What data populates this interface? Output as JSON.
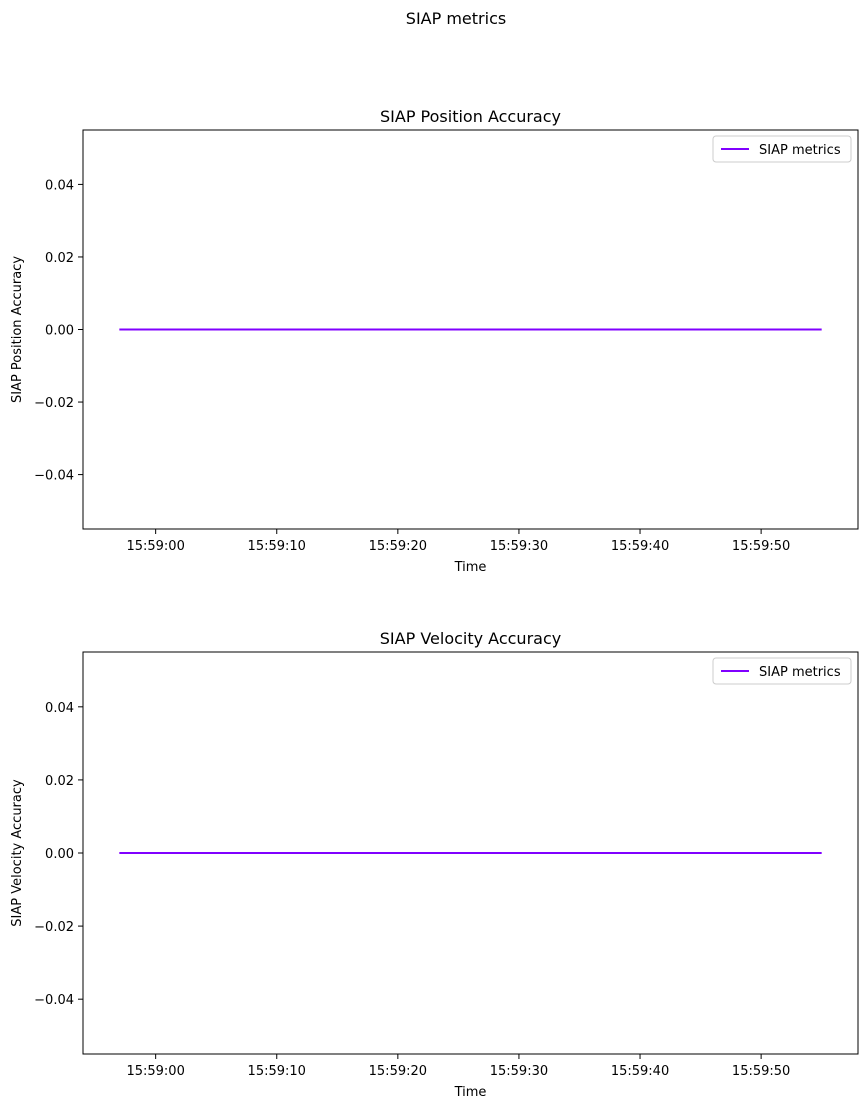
{
  "figure": {
    "suptitle": "SIAP metrics"
  },
  "chart_data": [
    {
      "type": "line",
      "title": "SIAP Position Accuracy",
      "xlabel": "Time",
      "ylabel": "SIAP Position Accuracy",
      "x_ticks": [
        "15:59:00",
        "15:59:10",
        "15:59:20",
        "15:59:30",
        "15:59:40",
        "15:59:50"
      ],
      "y_ticks": [
        "−0.04",
        "−0.02",
        "0.00",
        "0.02",
        "0.04"
      ],
      "ylim": [
        -0.055,
        0.055
      ],
      "xlim": [
        "15:58:54",
        "15:59:58"
      ],
      "grid": false,
      "legend": "top-right",
      "series": [
        {
          "name": "SIAP metrics",
          "color": "#8000ff",
          "x": [
            "15:58:57",
            "15:59:55"
          ],
          "y": [
            0.0,
            0.0
          ]
        }
      ]
    },
    {
      "type": "line",
      "title": "SIAP Velocity Accuracy",
      "xlabel": "Time",
      "ylabel": "SIAP Velocity Accuracy",
      "x_ticks": [
        "15:59:00",
        "15:59:10",
        "15:59:20",
        "15:59:30",
        "15:59:40",
        "15:59:50"
      ],
      "y_ticks": [
        "−0.04",
        "−0.02",
        "0.00",
        "0.02",
        "0.04"
      ],
      "ylim": [
        -0.055,
        0.055
      ],
      "xlim": [
        "15:58:54",
        "15:59:58"
      ],
      "grid": false,
      "legend": "top-right",
      "series": [
        {
          "name": "SIAP metrics",
          "color": "#8000ff",
          "x": [
            "15:58:57",
            "15:59:55"
          ],
          "y": [
            0.0,
            0.0
          ]
        }
      ]
    }
  ]
}
